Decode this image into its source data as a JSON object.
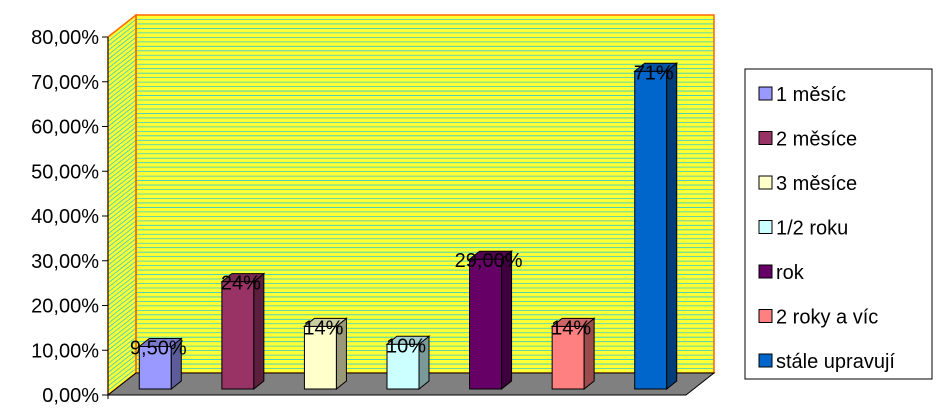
{
  "chart_data": {
    "type": "bar",
    "categories": [
      "1 měsíc",
      "2 měsíce",
      "3 měsíce",
      "1/2 roku",
      "rok",
      "2 roky a víc",
      "stále upravují"
    ],
    "values": [
      9.5,
      24,
      14,
      10,
      29,
      14,
      71
    ],
    "data_labels": [
      "9,50%",
      "24%",
      "14%",
      "10%",
      "29,00%",
      "14%",
      "71%"
    ],
    "yticks": [
      "0,00%",
      "10,00%",
      "20,00%",
      "30,00%",
      "40,00%",
      "50,00%",
      "60,00%",
      "70,00%",
      "80,00%"
    ],
    "ylim": [
      0,
      80
    ],
    "legend": {
      "position": "right",
      "entries": [
        "1 měsíc",
        "2 měsíce",
        "3 měsíce",
        "1/2 roku",
        "rok",
        "2 roky a víc",
        "stále upravují"
      ]
    },
    "grid": true,
    "style": "3d-column",
    "colors": {
      "bars": [
        "#9999FF",
        "#993366",
        "#FFFFCC",
        "#CCFFFF",
        "#660066",
        "#FF8080",
        "#0066CC"
      ],
      "plot_wall": "#FFFF33",
      "gridline": "#33CCCC",
      "floor": "#808080",
      "frame": "#FF6600"
    }
  }
}
